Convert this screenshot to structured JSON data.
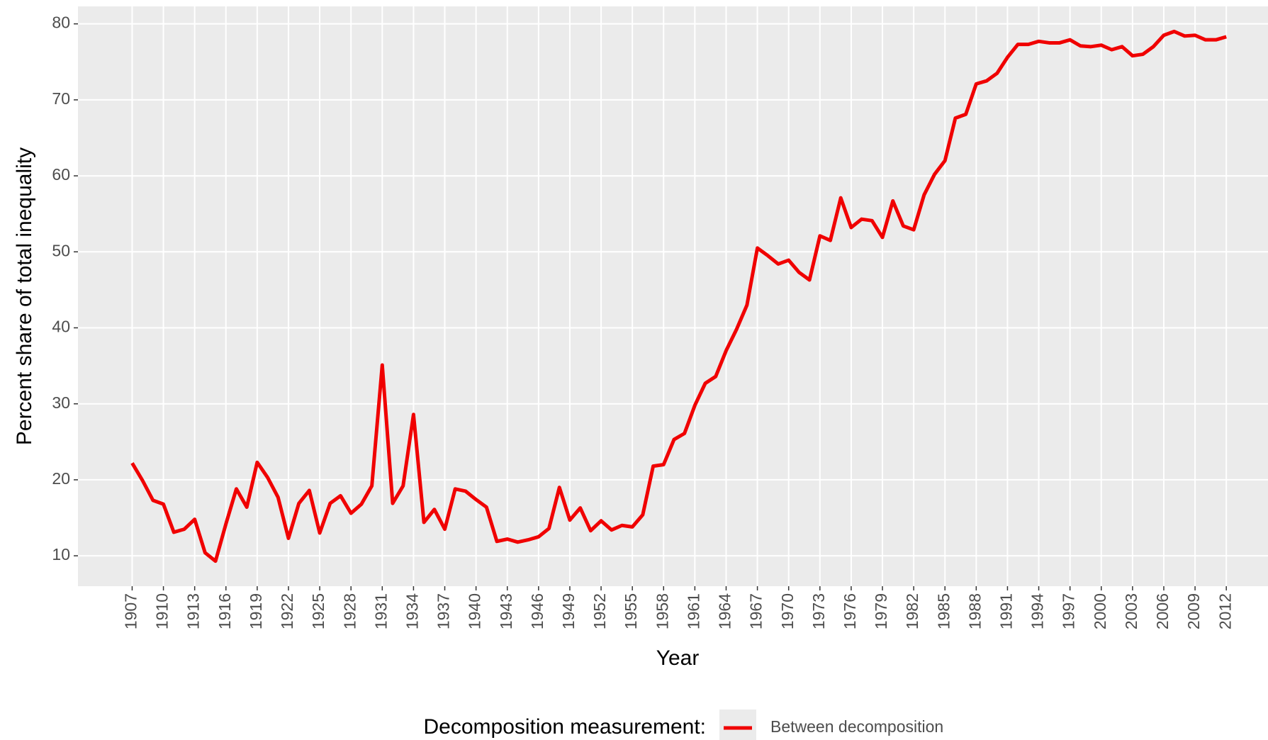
{
  "chart_data": {
    "type": "line",
    "xlabel": "Year",
    "ylabel": "Percent share of total inequality",
    "legend_title": "Decomposition measurement:",
    "legend": "bottom",
    "grid": true,
    "x": [
      1907,
      1908,
      1909,
      1910,
      1911,
      1912,
      1913,
      1914,
      1915,
      1916,
      1917,
      1918,
      1919,
      1920,
      1921,
      1922,
      1923,
      1924,
      1925,
      1926,
      1927,
      1928,
      1929,
      1930,
      1931,
      1932,
      1933,
      1934,
      1935,
      1936,
      1937,
      1938,
      1939,
      1940,
      1941,
      1942,
      1943,
      1944,
      1945,
      1946,
      1947,
      1948,
      1949,
      1950,
      1951,
      1952,
      1953,
      1954,
      1955,
      1956,
      1957,
      1958,
      1959,
      1960,
      1961,
      1962,
      1963,
      1964,
      1965,
      1966,
      1967,
      1968,
      1969,
      1970,
      1971,
      1972,
      1973,
      1974,
      1975,
      1976,
      1977,
      1978,
      1979,
      1980,
      1981,
      1982,
      1983,
      1984,
      1985,
      1986,
      1987,
      1988,
      1989,
      1990,
      1991,
      1992,
      1993,
      1994,
      1995,
      1996,
      1997,
      1998,
      1999,
      2000,
      2001,
      2002,
      2003,
      2004,
      2005,
      2006,
      2007,
      2008,
      2009,
      2010,
      2011,
      2012
    ],
    "series": [
      {
        "name": "Between decomposition",
        "color": "#f00000",
        "values": [
          22.2,
          19.9,
          17.3,
          16.8,
          13.1,
          13.5,
          14.8,
          10.4,
          9.3,
          14.2,
          18.8,
          16.4,
          22.3,
          20.3,
          17.7,
          12.3,
          16.9,
          18.6,
          13.0,
          16.9,
          17.9,
          15.6,
          16.8,
          19.2,
          35.1,
          16.9,
          19.2,
          28.6,
          14.4,
          16.1,
          13.5,
          18.8,
          18.5,
          17.4,
          16.4,
          11.9,
          12.2,
          11.8,
          12.1,
          12.5,
          13.6,
          19.0,
          14.7,
          16.3,
          13.3,
          14.6,
          13.4,
          14.0,
          13.8,
          15.4,
          21.8,
          22.0,
          25.3,
          26.1,
          29.8,
          32.7,
          33.6,
          37.0,
          39.8,
          43.0,
          50.5,
          49.5,
          48.4,
          48.9,
          47.3,
          46.3,
          52.1,
          51.5,
          57.1,
          53.2,
          54.3,
          54.1,
          51.9,
          56.7,
          53.4,
          52.9,
          57.5,
          60.2,
          62.0,
          67.6,
          68.1,
          72.1,
          72.5,
          73.5,
          75.6,
          77.3,
          77.3,
          77.7,
          77.5,
          77.5,
          77.9,
          77.1,
          77.0,
          77.2,
          76.6,
          77.0,
          75.8,
          76.0,
          77.0,
          78.5,
          79.0,
          78.4,
          78.5,
          77.9,
          77.9,
          78.3
        ]
      }
    ],
    "xlim": [
      1901.8,
      2016
    ],
    "xticks": [
      1907,
      1910,
      1913,
      1916,
      1919,
      1922,
      1925,
      1928,
      1931,
      1934,
      1937,
      1940,
      1943,
      1946,
      1949,
      1952,
      1955,
      1958,
      1961,
      1964,
      1967,
      1970,
      1973,
      1976,
      1979,
      1982,
      1985,
      1988,
      1991,
      1994,
      1997,
      2000,
      2003,
      2006,
      2009,
      2012
    ],
    "ylim": [
      6,
      82.3
    ],
    "yticks": [
      10,
      20,
      30,
      40,
      50,
      60,
      70,
      80
    ]
  }
}
